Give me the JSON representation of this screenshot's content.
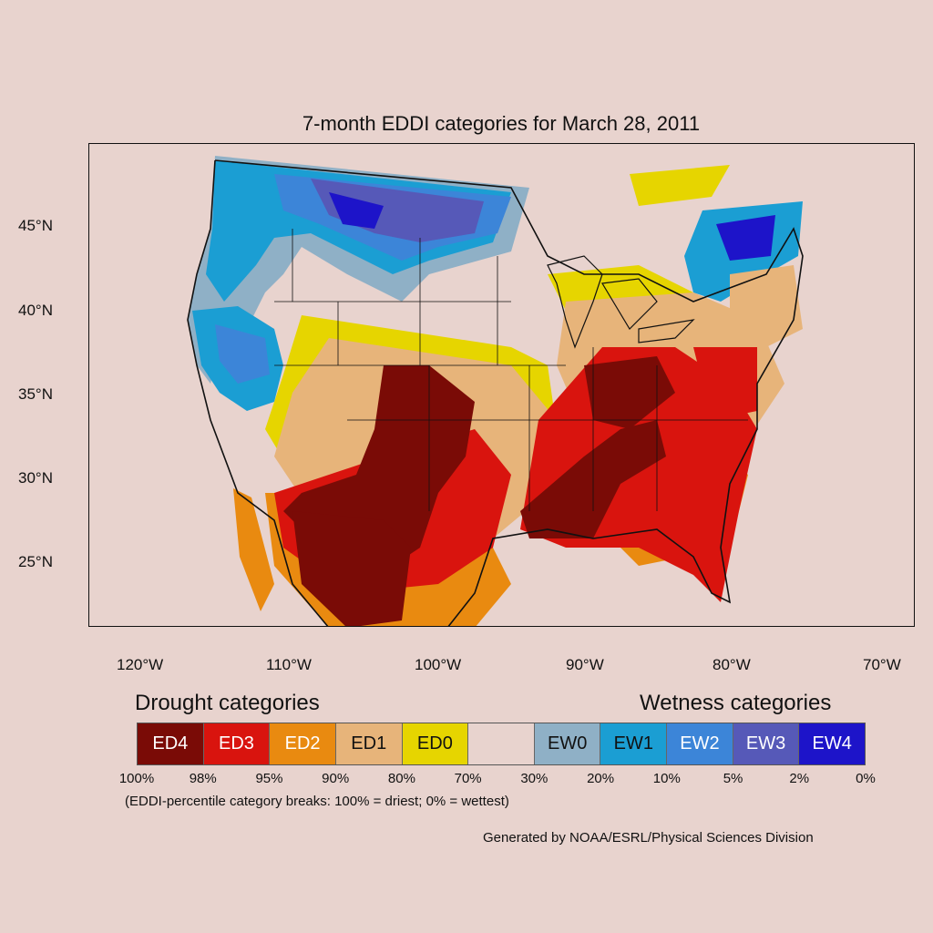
{
  "title": "7-month EDDI categories for March 28, 2011",
  "axes": {
    "lat_labels": [
      "45°N",
      "40°N",
      "35°N",
      "30°N",
      "25°N"
    ],
    "lon_labels": [
      "120°W",
      "110°W",
      "100°W",
      "90°W",
      "80°W",
      "70°W"
    ]
  },
  "legend": {
    "drought_heading": "Drought categories",
    "wetness_heading": "Wetness categories",
    "categories": [
      {
        "label": "ED4",
        "color": "#7a0b06",
        "text_color": "#ffffff"
      },
      {
        "label": "ED3",
        "color": "#d9140e",
        "text_color": "#ffffff"
      },
      {
        "label": "ED2",
        "color": "#e98a10",
        "text_color": "#ffffff"
      },
      {
        "label": "ED1",
        "color": "#e7b47a",
        "text_color": "#111111"
      },
      {
        "label": "ED0",
        "color": "#e6d500",
        "text_color": "#111111"
      },
      {
        "label": "",
        "color": "#e8d3ce",
        "text_color": "#111111"
      },
      {
        "label": "EW0",
        "color": "#8fb0c6",
        "text_color": "#111111"
      },
      {
        "label": "EW1",
        "color": "#1b9ed3",
        "text_color": "#111111"
      },
      {
        "label": "EW2",
        "color": "#3c85d8",
        "text_color": "#ffffff"
      },
      {
        "label": "EW3",
        "color": "#5659b8",
        "text_color": "#ffffff"
      },
      {
        "label": "EW4",
        "color": "#1d14c9",
        "text_color": "#ffffff"
      }
    ],
    "percent_breaks": [
      "100%",
      "98%",
      "95%",
      "90%",
      "80%",
      "70%",
      "30%",
      "20%",
      "10%",
      "5%",
      "2%",
      "0%"
    ],
    "note": "(EDDI-percentile category breaks: 100% = driest; 0% = wettest)"
  },
  "credit": "Generated by NOAA/ESRL/Physical Sciences Division"
}
